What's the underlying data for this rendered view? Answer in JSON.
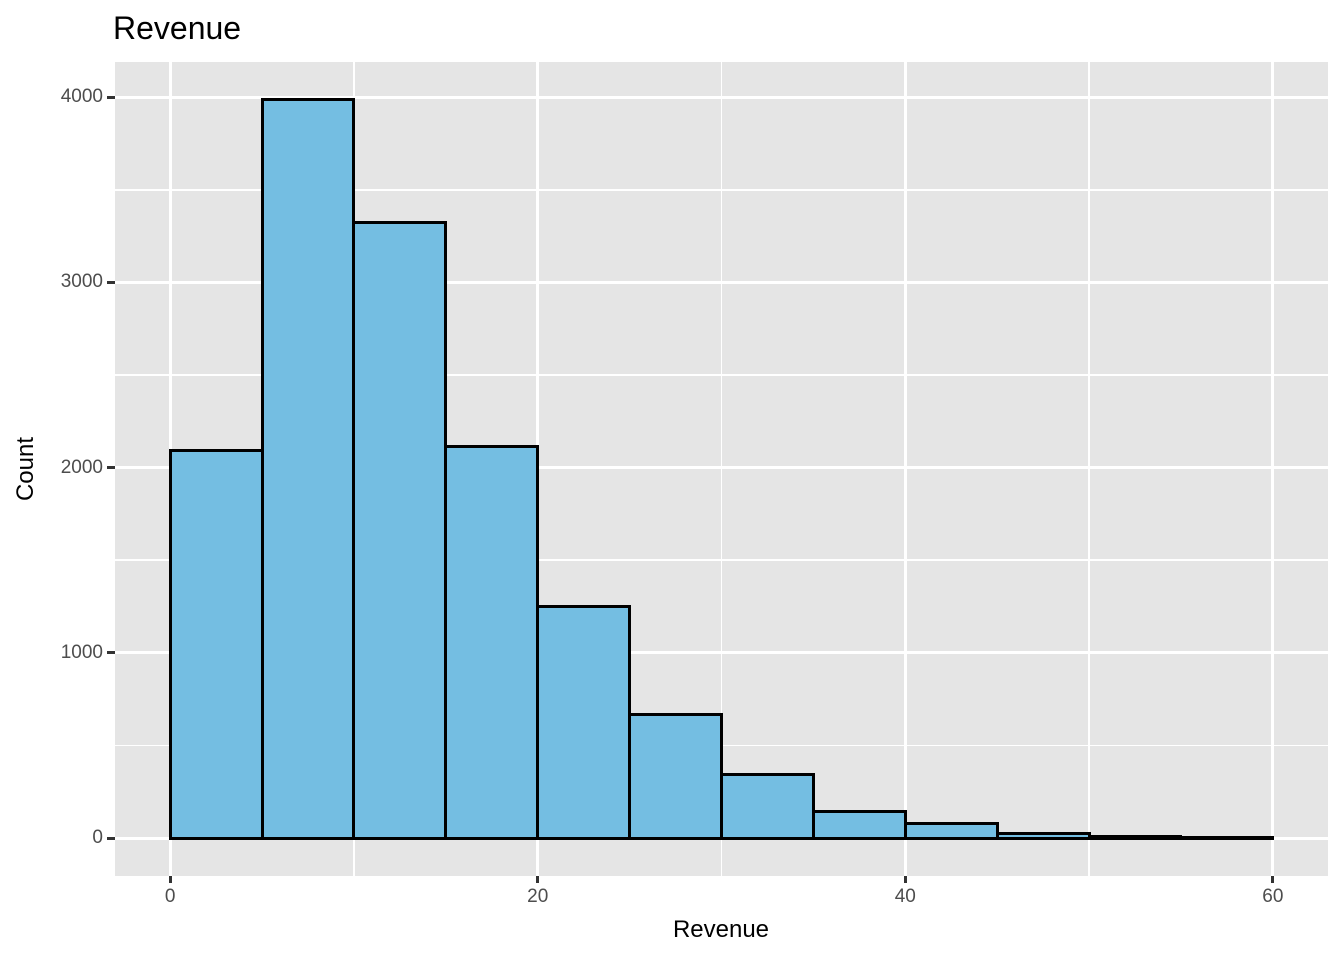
{
  "figure": {
    "title": "Revenue",
    "x_axis_title": "Revenue",
    "y_axis_title": "Count"
  },
  "chart_data": {
    "type": "bar",
    "subtype": "histogram",
    "title": "Revenue",
    "xlabel": "Revenue",
    "ylabel": "Count",
    "bin_width": 5,
    "bins": [
      {
        "x0": 0,
        "x1": 5,
        "count": 2090
      },
      {
        "x0": 5,
        "x1": 10,
        "count": 3990
      },
      {
        "x0": 10,
        "x1": 15,
        "count": 3325
      },
      {
        "x0": 15,
        "x1": 20,
        "count": 2115
      },
      {
        "x0": 20,
        "x1": 25,
        "count": 1250
      },
      {
        "x0": 25,
        "x1": 30,
        "count": 665
      },
      {
        "x0": 30,
        "x1": 35,
        "count": 345
      },
      {
        "x0": 35,
        "x1": 40,
        "count": 145
      },
      {
        "x0": 40,
        "x1": 45,
        "count": 80
      },
      {
        "x0": 45,
        "x1": 50,
        "count": 25
      },
      {
        "x0": 50,
        "x1": 55,
        "count": 10
      },
      {
        "x0": 55,
        "x1": 60,
        "count": 3
      }
    ],
    "x_ticks": [
      0,
      20,
      40,
      60
    ],
    "x_minor_ticks": [
      10,
      30,
      50
    ],
    "y_ticks": [
      0,
      1000,
      2000,
      3000,
      4000
    ],
    "y_minor_ticks": [
      500,
      1500,
      2500,
      3500
    ],
    "xlim": [
      -3,
      63
    ],
    "ylim": [
      -205,
      4190
    ],
    "grid": "on",
    "legend": "none",
    "colors": {
      "bar_fill": "#74BEE2",
      "bar_stroke": "#000000",
      "panel_bg": "#E5E5E5",
      "grid_major": "#FFFFFF",
      "grid_minor": "#FFFFFF",
      "tick_label": "#4D4D4D",
      "tick_mark": "#333333",
      "title_text": "#000000",
      "figure_bg": "#FFFFFF"
    }
  }
}
